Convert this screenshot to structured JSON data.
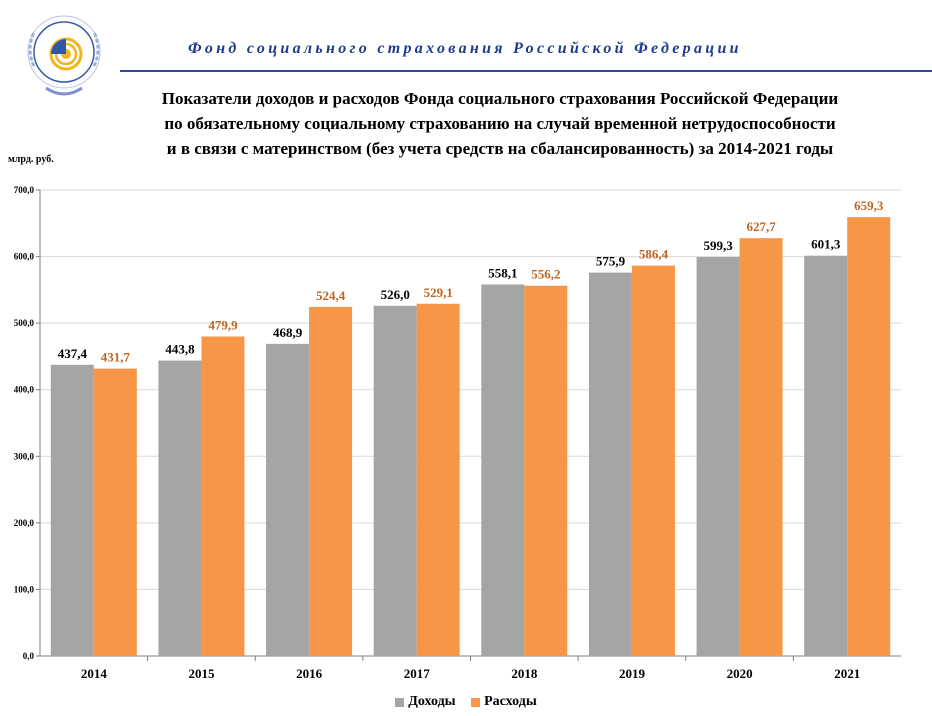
{
  "header": {
    "org_name": "Фонд социального страхования Российской Федерации",
    "logo_text": "ФОНД СОЦИАЛЬНОГО СТРАХОВАНИЯ РОССИЙСКОЙ ФЕДЕРАЦИИ"
  },
  "chart_data": {
    "type": "bar",
    "title_lines": [
      "Показатели доходов и расходов Фонда социального страхования Российской Федерации",
      "по обязательному социальному страхованию на случай временной нетрудоспособности",
      "и в связи с материнством (без учета средств на сбалансированность) за 2014-2021 годы"
    ],
    "ylabel": "млрд. руб.",
    "xlabel": "",
    "ylim": [
      0,
      700
    ],
    "yticks": [
      "0,0",
      "100,0",
      "200,0",
      "300,0",
      "400,0",
      "500,0",
      "600,0",
      "700,0"
    ],
    "categories": [
      "2014",
      "2015",
      "2016",
      "2017",
      "2018",
      "2019",
      "2020",
      "2021"
    ],
    "series": [
      {
        "name": "Доходы",
        "color": "#a5a5a5",
        "label_color": "#000000",
        "values": [
          437.4,
          443.8,
          468.9,
          526.0,
          558.1,
          575.9,
          599.3,
          601.3
        ],
        "labels": [
          "437,4",
          "443,8",
          "468,9",
          "526,0",
          "558,1",
          "575,9",
          "599,3",
          "601,3"
        ]
      },
      {
        "name": "Расходы",
        "color": "#f79646",
        "label_color": "#c0651e",
        "values": [
          431.7,
          479.9,
          524.4,
          529.1,
          556.2,
          586.4,
          627.7,
          659.3
        ],
        "labels": [
          "431,7",
          "479,9",
          "524,4",
          "529,1",
          "556,2",
          "586,4",
          "627,7",
          "659,3"
        ]
      }
    ],
    "grid": true,
    "legend_position": "bottom-center"
  }
}
